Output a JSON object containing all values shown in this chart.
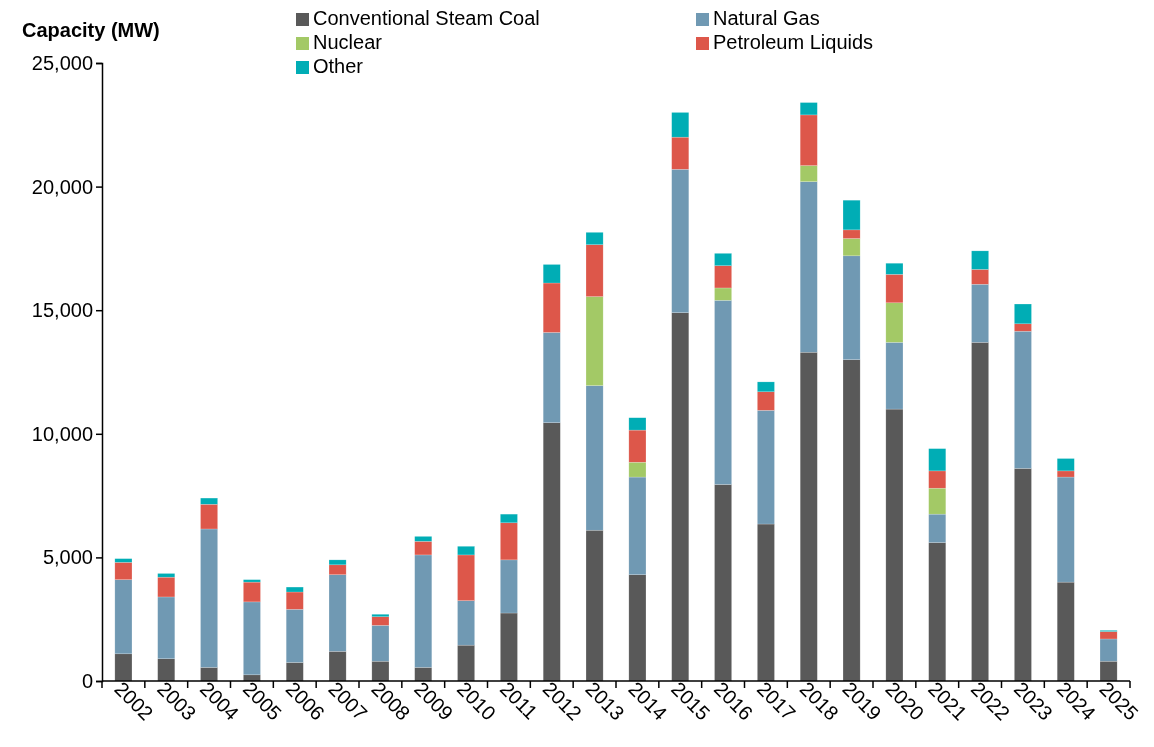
{
  "chart_data": {
    "type": "bar",
    "stacked": true,
    "ylabel": "Capacity (MW)",
    "categories": [
      "2002",
      "2003",
      "2004",
      "2005",
      "2006",
      "2007",
      "2008",
      "2009",
      "2010",
      "2011",
      "2012",
      "2013",
      "2014",
      "2015",
      "2016",
      "2017",
      "2018",
      "2019",
      "2020",
      "2021",
      "2022",
      "2023",
      "2024",
      "2025"
    ],
    "series": [
      {
        "name": "Conventional Steam Coal",
        "color": "#595959",
        "values": [
          1100,
          900,
          550,
          250,
          750,
          1200,
          800,
          550,
          1450,
          2750,
          10450,
          6100,
          4300,
          14900,
          7950,
          6350,
          13300,
          13000,
          11000,
          5600,
          13700,
          8600,
          4000,
          800
        ]
      },
      {
        "name": "Natural Gas",
        "color": "#7099b3",
        "values": [
          3000,
          2500,
          5600,
          2950,
          2150,
          3100,
          1450,
          4550,
          1800,
          2150,
          3650,
          5850,
          3950,
          5800,
          7450,
          4600,
          6900,
          4200,
          2700,
          1150,
          2350,
          5550,
          4250,
          900
        ]
      },
      {
        "name": "Nuclear",
        "color": "#a3c966",
        "values": [
          0,
          0,
          0,
          0,
          0,
          0,
          0,
          0,
          0,
          0,
          0,
          3600,
          600,
          0,
          500,
          0,
          650,
          700,
          1600,
          1050,
          0,
          0,
          0,
          0
        ]
      },
      {
        "name": "Petroleum Liquids",
        "color": "#dd574a",
        "values": [
          700,
          800,
          1000,
          800,
          700,
          400,
          350,
          550,
          1850,
          1500,
          2000,
          2100,
          1300,
          1300,
          900,
          750,
          2050,
          350,
          1150,
          700,
          600,
          300,
          250,
          300
        ]
      },
      {
        "name": "Other",
        "color": "#00adb5",
        "values": [
          150,
          150,
          250,
          100,
          200,
          200,
          100,
          200,
          350,
          350,
          750,
          500,
          500,
          1000,
          500,
          400,
          500,
          1200,
          450,
          900,
          750,
          800,
          500,
          50
        ]
      }
    ],
    "ylim": [
      0,
      25000
    ],
    "yticks": [
      {
        "value": 0,
        "label": "0"
      },
      {
        "value": 5000,
        "label": "5,000"
      },
      {
        "value": 10000,
        "label": "10,000"
      },
      {
        "value": 15000,
        "label": "15,000"
      },
      {
        "value": 20000,
        "label": "20,000"
      },
      {
        "value": 25000,
        "label": "25,000"
      }
    ],
    "grid": false,
    "legend": "top"
  }
}
